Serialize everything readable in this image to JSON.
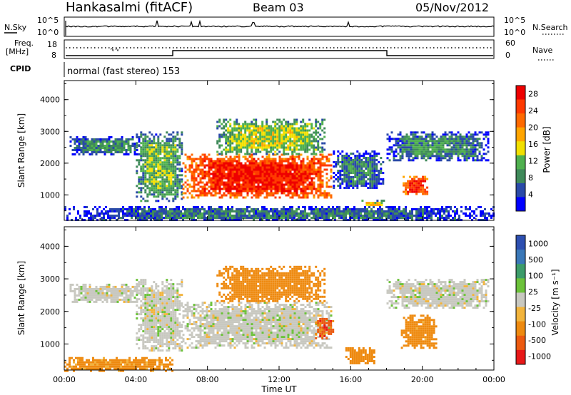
{
  "header": {
    "station": "Hankasalmi (fitACF)",
    "beam": "Beam 03",
    "date": "05/Nov/2012"
  },
  "status_panel": {
    "nsky_label": "N.Sky",
    "nsky_ticks": [
      "10^5",
      "10^0"
    ],
    "nsearch_label": "N.Search",
    "nsearch_ticks": [
      "10^5",
      "10^0"
    ],
    "freq_label": "Freq.",
    "freq_unit": "[MHz]",
    "freq_ticks": [
      "18",
      "8"
    ],
    "nave_label": "Nave",
    "nave_ticks": [
      "60",
      "0"
    ],
    "cpid_label": "CPID",
    "cpid_text": "normal (fast stereo) 153"
  },
  "colors": {
    "power_scale": [
      "#0000ff",
      "#2a4aa8",
      "#3f8a5a",
      "#4fb04f",
      "#f2e000",
      "#ffa500",
      "#ff6a00",
      "#ff3a00",
      "#ee0000"
    ],
    "velocity_scale": [
      "#2d4fb0",
      "#3a78b8",
      "#3c9c6a",
      "#6cc23a",
      "#c8c8c0",
      "#f2b43c",
      "#ee8a10",
      "#ec5a10",
      "#e81818"
    ],
    "ground_scatter": "#c8c8c0"
  },
  "chart_data": [
    {
      "id": "power",
      "type": "heatmap",
      "ylabel": "Slant Range [km]",
      "yticks": [
        "1000",
        "2000",
        "3000",
        "4000"
      ],
      "ylim": [
        200,
        4600
      ],
      "colorbar_label": "Power [dB]",
      "colorbar_ticks": [
        "4",
        "8",
        "12",
        "16",
        "20",
        "24",
        "28"
      ],
      "colorbar_range": [
        0,
        30
      ],
      "regions": [
        {
          "t": [
            0.3,
            4.2
          ],
          "r": [
            2300,
            2850
          ],
          "level": 9
        },
        {
          "t": [
            4.0,
            6.6
          ],
          "r": [
            800,
            3000
          ],
          "level": 12
        },
        {
          "t": [
            6.6,
            14.9
          ],
          "r": [
            900,
            2300
          ],
          "level": 27
        },
        {
          "t": [
            8.5,
            14.5
          ],
          "r": [
            2300,
            3400
          ],
          "level": 14
        },
        {
          "t": [
            15.0,
            17.8
          ],
          "r": [
            1200,
            2400
          ],
          "level": 8
        },
        {
          "t": [
            16.6,
            17.9
          ],
          "r": [
            650,
            850
          ],
          "level": 16
        },
        {
          "t": [
            18.0,
            23.7
          ],
          "r": [
            2100,
            3000
          ],
          "level": 9
        },
        {
          "t": [
            18.9,
            20.3
          ],
          "r": [
            1000,
            1600
          ],
          "level": 27
        },
        {
          "t": [
            0.0,
            24.0
          ],
          "r": [
            200,
            650
          ],
          "level": 7
        }
      ]
    },
    {
      "id": "velocity",
      "type": "heatmap",
      "xlabel": "Time UT",
      "xticks": [
        "00:00",
        "04:00",
        "08:00",
        "12:00",
        "16:00",
        "20:00",
        "00:00"
      ],
      "xlim": [
        0,
        24
      ],
      "ylabel": "Slant Range [km]",
      "yticks": [
        "1000",
        "2000",
        "3000",
        "4000"
      ],
      "ylim": [
        200,
        4600
      ],
      "colorbar_label": "Velocity [m s⁻¹]",
      "colorbar_ticks": [
        "1000",
        "500",
        "100",
        "25",
        "-25",
        "-100",
        "-500",
        "-1000"
      ],
      "regions": [
        {
          "t": [
            0.3,
            4.2
          ],
          "r": [
            2300,
            2850
          ],
          "v": 0
        },
        {
          "t": [
            4.0,
            6.6
          ],
          "r": [
            800,
            3000
          ],
          "v": 0
        },
        {
          "t": [
            6.6,
            14.9
          ],
          "r": [
            900,
            2300
          ],
          "v": 0
        },
        {
          "t": [
            8.5,
            14.5
          ],
          "r": [
            2300,
            3400
          ],
          "v": -300
        },
        {
          "t": [
            14.0,
            15.0
          ],
          "r": [
            1200,
            1800
          ],
          "v": -700
        },
        {
          "t": [
            15.7,
            17.3
          ],
          "r": [
            400,
            900
          ],
          "v": -250
        },
        {
          "t": [
            18.0,
            23.7
          ],
          "r": [
            2100,
            3000
          ],
          "v": 0
        },
        {
          "t": [
            18.8,
            20.8
          ],
          "r": [
            900,
            1900
          ],
          "v": -250
        },
        {
          "t": [
            0.0,
            6.0
          ],
          "r": [
            200,
            600
          ],
          "v": -200
        }
      ]
    }
  ]
}
